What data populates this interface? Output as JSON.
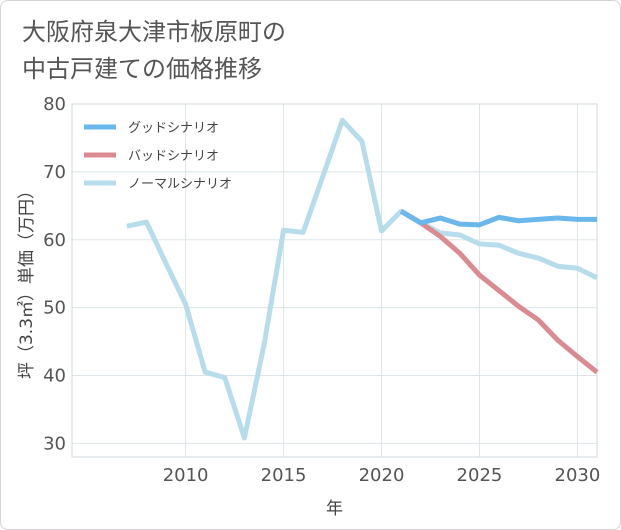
{
  "title_line1": "大阪府泉大津市板原町の",
  "title_line2": "中古戸建ての価格推移",
  "chart_data": {
    "type": "line",
    "title": "大阪府泉大津市板原町の中古戸建ての価格推移",
    "xlabel": "年",
    "ylabel": "坪（3.3㎡）単価（万円）",
    "xlim": [
      2004.2,
      2031
    ],
    "ylim": [
      28,
      80
    ],
    "xticks": [
      2010,
      2015,
      2020,
      2025,
      2030
    ],
    "yticks": [
      30,
      40,
      50,
      60,
      70,
      80
    ],
    "grid": true,
    "legend_position": "top-left",
    "series": [
      {
        "name": "グッドシナリオ",
        "color": "#6ab7ec",
        "x": [
          2021,
          2022,
          2023,
          2024,
          2025,
          2026,
          2027,
          2028,
          2029,
          2030,
          2031
        ],
        "y": [
          64.2,
          62.5,
          63.2,
          62.3,
          62.2,
          63.3,
          62.8,
          63.0,
          63.2,
          63.0,
          63.0
        ]
      },
      {
        "name": "バッドシナリオ",
        "color": "#dc8a92",
        "x": [
          2021,
          2022,
          2023,
          2024,
          2025,
          2026,
          2027,
          2028,
          2029,
          2030,
          2031
        ],
        "y": [
          64.2,
          62.5,
          60.5,
          58.0,
          54.8,
          52.5,
          50.2,
          48.2,
          45.2,
          42.8,
          40.5
        ]
      },
      {
        "name": "ノーマルシナリオ",
        "color": "#b7dcec",
        "x": [
          2007,
          2008,
          2009,
          2010,
          2011,
          2012,
          2013,
          2014,
          2015,
          2016,
          2017,
          2018,
          2019,
          2020,
          2021,
          2022,
          2023,
          2024,
          2025,
          2026,
          2027,
          2028,
          2029,
          2030,
          2031
        ],
        "y": [
          62.0,
          62.6,
          56.5,
          50.5,
          40.5,
          39.7,
          30.8,
          44.5,
          61.4,
          61.1,
          69.3,
          77.6,
          74.5,
          61.3,
          64.2,
          62.5,
          61.0,
          60.7,
          59.4,
          59.2,
          58.0,
          57.3,
          56.1,
          55.8,
          54.4
        ]
      }
    ]
  }
}
